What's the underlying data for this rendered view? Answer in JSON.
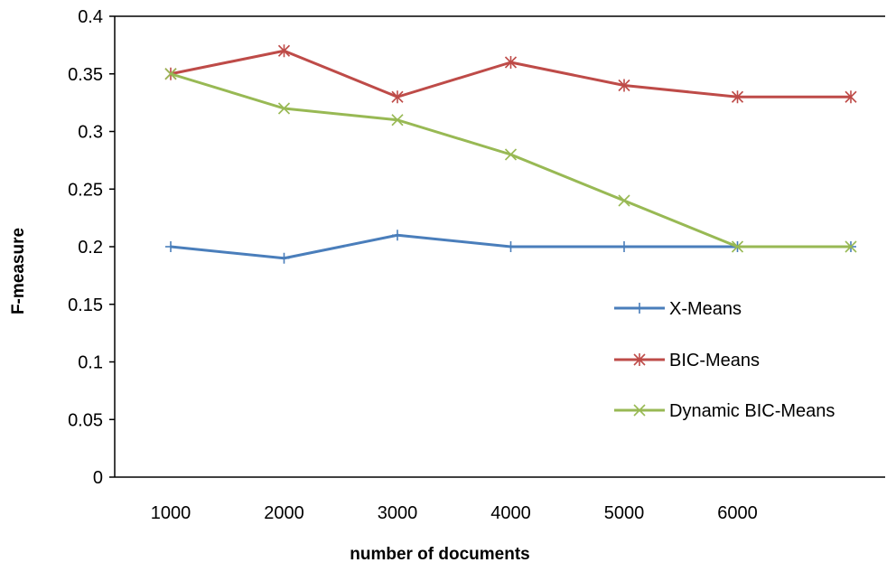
{
  "chart_data": {
    "type": "line",
    "xlabel": "number of documents",
    "ylabel": "F-measure",
    "categories": [
      "1000",
      "2000",
      "3000",
      "4000",
      "5000",
      "6000",
      ""
    ],
    "ylim": [
      0,
      0.4
    ],
    "yticks": [
      "0",
      "0.05",
      "0.1",
      "0.15",
      "0.2",
      "0.25",
      "0.3",
      "0.35",
      "0.4"
    ],
    "grid": false,
    "legend_position": "right-inside",
    "series": [
      {
        "name": "X-Means",
        "color": "#4a7ebb",
        "marker": "plus",
        "values": [
          0.2,
          0.19,
          0.21,
          0.2,
          0.2,
          0.2,
          0.2
        ]
      },
      {
        "name": "BIC-Means",
        "color": "#be4b48",
        "marker": "asterisk",
        "values": [
          0.35,
          0.37,
          0.33,
          0.36,
          0.34,
          0.33,
          0.33
        ]
      },
      {
        "name": "Dynamic BIC-Means",
        "color": "#98b954",
        "marker": "x",
        "values": [
          0.35,
          0.32,
          0.31,
          0.28,
          0.24,
          0.2,
          0.2
        ]
      }
    ]
  }
}
